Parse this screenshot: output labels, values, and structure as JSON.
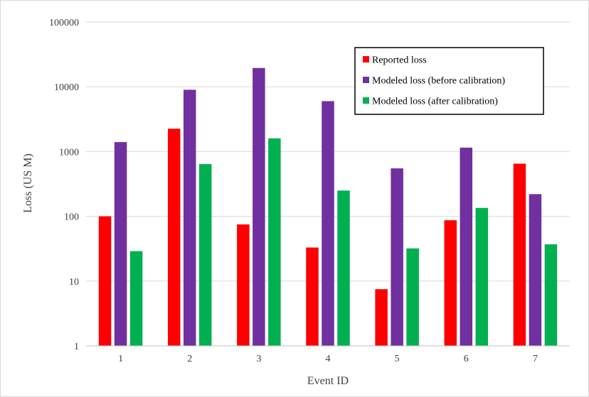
{
  "chart_data": {
    "type": "bar",
    "title": "",
    "xlabel": "Event ID",
    "ylabel": "Loss (US M)",
    "yscale": "log",
    "ylim": [
      1,
      100000
    ],
    "yticks": [
      "1",
      "10",
      "100",
      "1000",
      "10000",
      "100000"
    ],
    "categories": [
      "1",
      "2",
      "3",
      "4",
      "5",
      "6",
      "7"
    ],
    "grid": "horizontal",
    "legend_position": "top-right",
    "series": [
      {
        "name": "Reported loss",
        "color": "#ff0000",
        "values": [
          100,
          2250,
          75,
          33,
          7.5,
          87,
          650
        ]
      },
      {
        "name": "Modeled loss (before calibration)",
        "color": "#7030a0",
        "values": [
          1400,
          9000,
          19500,
          6000,
          550,
          1150,
          220
        ]
      },
      {
        "name": "Modeled loss (after calibration)",
        "color": "#00b050",
        "values": [
          29,
          640,
          1600,
          250,
          32,
          135,
          37
        ]
      }
    ]
  }
}
